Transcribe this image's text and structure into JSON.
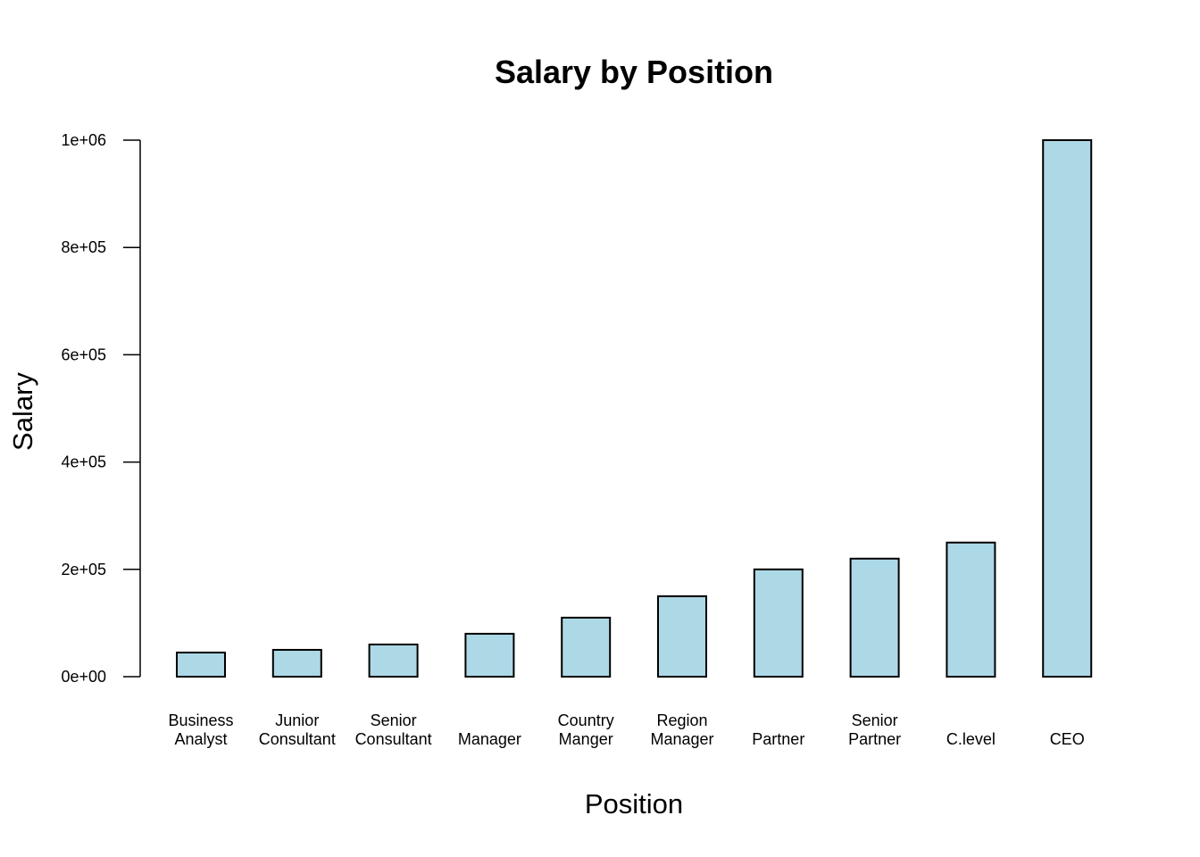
{
  "chart_data": {
    "type": "bar",
    "title": "Salary by Position",
    "xlabel": "Position",
    "ylabel": "Salary",
    "categories": [
      "Business\nAnalyst",
      "Junior\nConsultant",
      "Senior\nConsultant",
      "Manager",
      "Country\nManger",
      "Region\nManager",
      "Partner",
      "Senior\nPartner",
      "C.level",
      "CEO"
    ],
    "values": [
      45000,
      50000,
      60000,
      80000,
      110000,
      150000,
      200000,
      220000,
      250000,
      1000000
    ],
    "ylim": [
      0,
      1000000
    ],
    "yticks": [
      0,
      200000,
      400000,
      600000,
      800000,
      1000000
    ],
    "ytick_labels": [
      "0e+00",
      "2e+05",
      "4e+05",
      "6e+05",
      "8e+05",
      "1e+06"
    ],
    "grid": false,
    "bar_color": "#ADD8E6",
    "bar_edge_color": "#000000"
  }
}
